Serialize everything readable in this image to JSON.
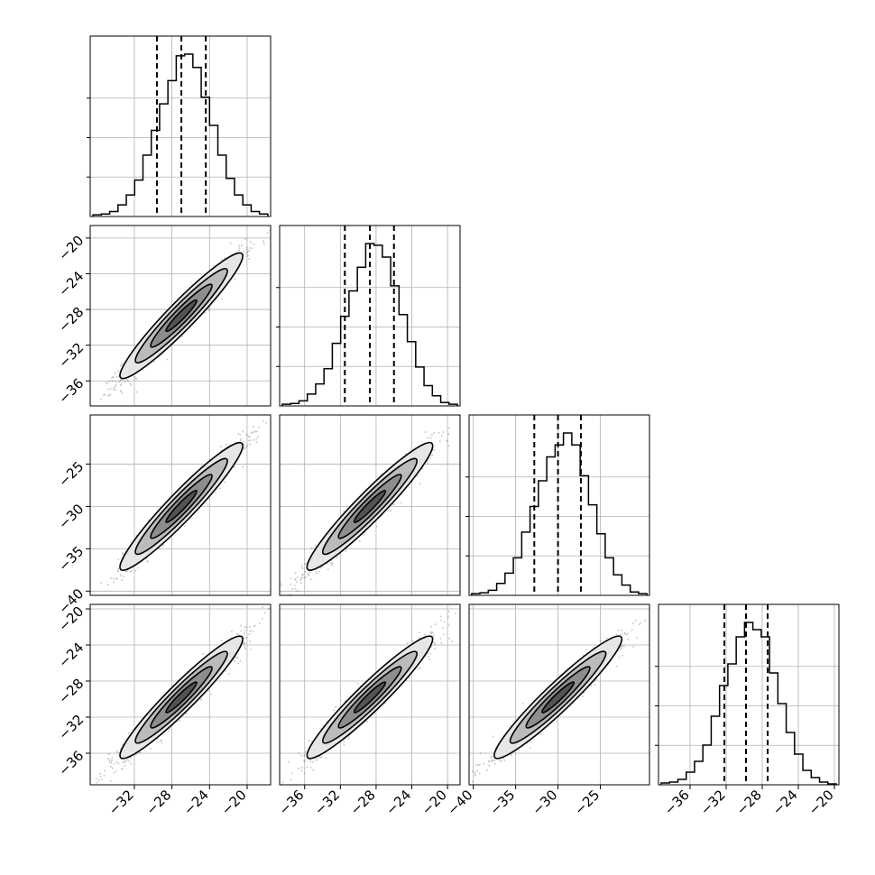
{
  "chart_data": {
    "type": "corner",
    "title": "",
    "n_params": 4,
    "grid": true,
    "colors": {
      "line": "#000000",
      "scatter": "#555555",
      "contour_fill": [
        "#e6e6e6",
        "#b8b8b8",
        "#8a8a8a",
        "#505050"
      ],
      "grid": "#b0b0b0"
    },
    "params": [
      {
        "name": "",
        "mean": -27.0,
        "sigma": 2.6,
        "quantiles": [
          -29.6,
          -27.0,
          -24.4
        ],
        "range": [
          -36.7,
          -17.5
        ],
        "ticks": [
          -32,
          -28,
          -24,
          -20
        ],
        "hist": [
          1,
          1.5,
          3,
          7,
          13,
          22,
          37,
          52,
          68,
          82,
          97,
          98,
          90,
          72,
          55,
          37,
          23,
          13,
          7,
          3,
          1.5
        ]
      },
      {
        "name": "",
        "mean": -28.7,
        "sigma": 2.8,
        "quantiles": [
          -31.5,
          -28.7,
          -26.0
        ],
        "range": [
          -38.8,
          -18.6
        ],
        "ticks": [
          -36,
          -32,
          -28,
          -24,
          -20
        ],
        "hist": [
          1,
          1.5,
          3,
          7,
          13,
          22,
          37,
          53,
          68,
          82,
          96,
          95,
          88,
          71,
          54,
          38,
          23,
          12,
          6,
          2,
          1
        ]
      },
      {
        "name": "",
        "mean": -30.0,
        "sigma": 3.0,
        "quantiles": [
          -32.8,
          -30.0,
          -27.3
        ],
        "range": [
          -40.5,
          -19.2
        ],
        "ticks": [
          -40,
          -35,
          -30,
          -25
        ],
        "hist": [
          1,
          1.5,
          3,
          7,
          13,
          22,
          37,
          52,
          67,
          81,
          88,
          95,
          88,
          70,
          53,
          36,
          22,
          12,
          6,
          2,
          1
        ]
      },
      {
        "name": "",
        "mean": -29.8,
        "sigma": 2.7,
        "quantiles": [
          -32.2,
          -29.8,
          -27.4
        ],
        "range": [
          -39.5,
          -19.5
        ],
        "ticks": [
          -36,
          -32,
          -28,
          -24,
          -20
        ],
        "hist": [
          1,
          1.5,
          3,
          7,
          13,
          22,
          38,
          55,
          67,
          82,
          90,
          86,
          82,
          62,
          45,
          29,
          17,
          8,
          4,
          1.5,
          0.5
        ]
      }
    ],
    "correlation": 0.97,
    "quantile_levels": [
      0.16,
      0.5,
      0.84
    ],
    "contour_levels_sigma": [
      0.5,
      1.0,
      1.5,
      2.0
    ]
  }
}
